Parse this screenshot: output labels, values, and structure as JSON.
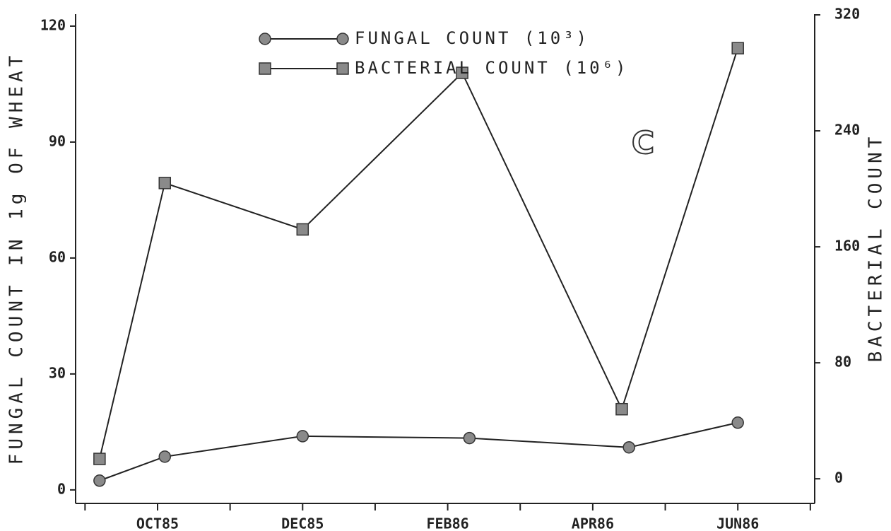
{
  "chart_data": {
    "type": "line",
    "y_label": "FUNGAL COUNT IN 1g OF WHEAT",
    "y2_label": "BACTERIAL COUNT",
    "annotation": "C",
    "xlim": [
      -0.13,
      10.06
    ],
    "xticks": [
      {
        "value": 1,
        "label": "OCT85"
      },
      {
        "value": 3,
        "label": "DEC85"
      },
      {
        "value": 5,
        "label": "FEB86"
      },
      {
        "value": 7,
        "label": "APR86"
      },
      {
        "value": 9,
        "label": "JUN86"
      }
    ],
    "xminor_ticks": [
      0,
      2,
      4,
      6,
      8,
      10
    ],
    "ylim": [
      -3.5,
      123.1
    ],
    "yticks": [
      0,
      30,
      60,
      90,
      120
    ],
    "y2lim": [
      -17,
      320.5
    ],
    "y2ticks": [
      0,
      80,
      160,
      240,
      320
    ],
    "series": [
      {
        "name": "FUNGAL COUNT (10³)",
        "color": "#8a8a8a",
        "marker": "circle",
        "x": [
          0.2,
          1.1,
          3.0,
          5.3,
          7.5,
          9.0
        ],
        "values": [
          2.4,
          8.6,
          13.9,
          13.4,
          11.0,
          17.4
        ]
      },
      {
        "name": "BACTERIAL COUNT (10⁶)",
        "color": "#8a8a8a",
        "marker": "square",
        "axis": "y2",
        "x": [
          0.2,
          1.1,
          3.0,
          5.2,
          7.4,
          9.0
        ],
        "values": [
          13.7,
          204,
          172,
          280,
          48,
          297
        ]
      }
    ]
  }
}
